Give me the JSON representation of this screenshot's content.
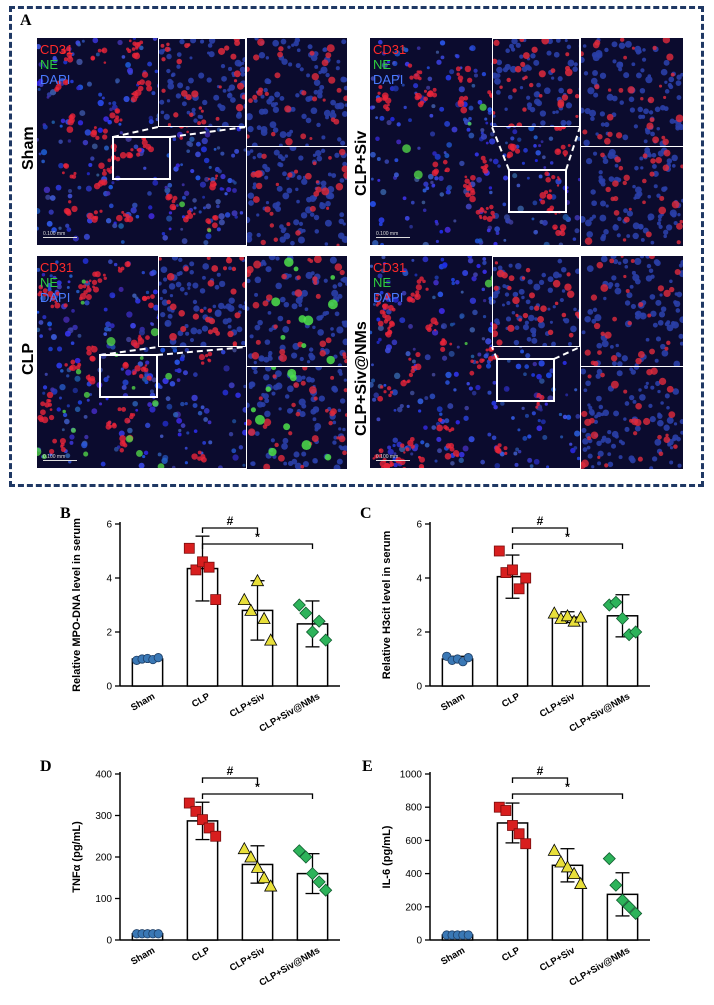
{
  "panel_letters": {
    "a": "A",
    "b": "B",
    "c": "C",
    "d": "D",
    "e": "E"
  },
  "microscopy": {
    "stain_labels": [
      {
        "text": "CD31",
        "color": "#ff2a2a"
      },
      {
        "text": "NE",
        "color": "#2ecc40"
      },
      {
        "text": "DAPI",
        "color": "#4a7bff"
      }
    ],
    "groups": [
      "Sham",
      "CLP+Siv",
      "CLP",
      "CLP+Siv@NMs"
    ],
    "scale_bar": "0.100 mm"
  },
  "colors": {
    "sham": "#3a78b5",
    "clp": "#d81e1e",
    "siv": "#e8df3a",
    "nms": "#2db35a",
    "frame": "#1f3864"
  },
  "chart_data": [
    {
      "panel": "B",
      "type": "bar",
      "ylabel": "Relative MPO-DNA level in serum",
      "xlabel": "",
      "ylim": [
        0,
        6
      ],
      "yticks": [
        0,
        2,
        4,
        6
      ],
      "categories": [
        "Sham",
        "CLP",
        "CLP+Siv",
        "CLP+Siv@NMs"
      ],
      "values": [
        1.0,
        4.35,
        2.8,
        2.3
      ],
      "sd": [
        0.08,
        1.2,
        1.1,
        0.85
      ],
      "points": [
        [
          0.95,
          1.0,
          1.02,
          0.98,
          1.05
        ],
        [
          5.1,
          4.3,
          4.6,
          4.4,
          3.2
        ],
        [
          3.2,
          2.8,
          3.9,
          2.5,
          1.7
        ],
        [
          3.0,
          2.7,
          2.0,
          2.4,
          1.7
        ]
      ],
      "markers": [
        "circle",
        "square",
        "triangle",
        "diamond"
      ],
      "comparisons": [
        {
          "from": 1,
          "to": 2,
          "label": "#"
        },
        {
          "from": 1,
          "to": 3,
          "label": "*"
        }
      ]
    },
    {
      "panel": "C",
      "type": "bar",
      "ylabel": "Relative H3cit level in serum",
      "xlabel": "",
      "ylim": [
        0,
        6
      ],
      "yticks": [
        0,
        2,
        4,
        6
      ],
      "categories": [
        "Sham",
        "CLP",
        "CLP+Siv",
        "CLP+Siv@NMs"
      ],
      "values": [
        1.0,
        4.05,
        2.55,
        2.6
      ],
      "sd": [
        0.1,
        0.8,
        0.2,
        0.78
      ],
      "points": [
        [
          1.1,
          0.95,
          1.0,
          0.9,
          1.05
        ],
        [
          5.0,
          4.2,
          4.3,
          3.6,
          4.0
        ],
        [
          2.7,
          2.5,
          2.6,
          2.4,
          2.55
        ],
        [
          3.0,
          3.1,
          2.5,
          1.9,
          2.0
        ]
      ],
      "markers": [
        "circle",
        "square",
        "triangle",
        "diamond"
      ],
      "comparisons": [
        {
          "from": 1,
          "to": 2,
          "label": "#"
        },
        {
          "from": 1,
          "to": 3,
          "label": "*"
        }
      ]
    },
    {
      "panel": "D",
      "type": "bar",
      "ylabel": "TNFα (pg/mL)",
      "xlabel": "",
      "ylim": [
        0,
        400
      ],
      "yticks": [
        0,
        100,
        200,
        300,
        400
      ],
      "categories": [
        "Sham",
        "CLP",
        "CLP+Siv",
        "CLP+Siv@NMs"
      ],
      "values": [
        15,
        287,
        182,
        160
      ],
      "sd": [
        2,
        45,
        45,
        48
      ],
      "points": [
        [
          15,
          15,
          15,
          15,
          15
        ],
        [
          330,
          310,
          290,
          270,
          250
        ],
        [
          220,
          200,
          175,
          150,
          130
        ],
        [
          215,
          200,
          160,
          140,
          120
        ]
      ],
      "markers": [
        "circle",
        "square",
        "triangle",
        "diamond"
      ],
      "comparisons": [
        {
          "from": 1,
          "to": 2,
          "label": "#"
        },
        {
          "from": 1,
          "to": 3,
          "label": "*"
        }
      ]
    },
    {
      "panel": "E",
      "type": "bar",
      "ylabel": "IL-6 (pg/mL)",
      "xlabel": "",
      "ylim": [
        0,
        1000
      ],
      "yticks": [
        0,
        200,
        400,
        600,
        800,
        1000
      ],
      "categories": [
        "Sham",
        "CLP",
        "CLP+Siv",
        "CLP+Siv@NMs"
      ],
      "values": [
        30,
        705,
        450,
        275
      ],
      "sd": [
        3,
        120,
        100,
        130
      ],
      "points": [
        [
          30,
          30,
          30,
          30,
          30
        ],
        [
          800,
          780,
          690,
          640,
          580
        ],
        [
          540,
          470,
          440,
          400,
          340
        ],
        [
          490,
          330,
          240,
          200,
          160
        ]
      ],
      "markers": [
        "circle",
        "square",
        "triangle",
        "diamond"
      ],
      "comparisons": [
        {
          "from": 1,
          "to": 2,
          "label": "#"
        },
        {
          "from": 1,
          "to": 3,
          "label": "*"
        }
      ]
    }
  ]
}
